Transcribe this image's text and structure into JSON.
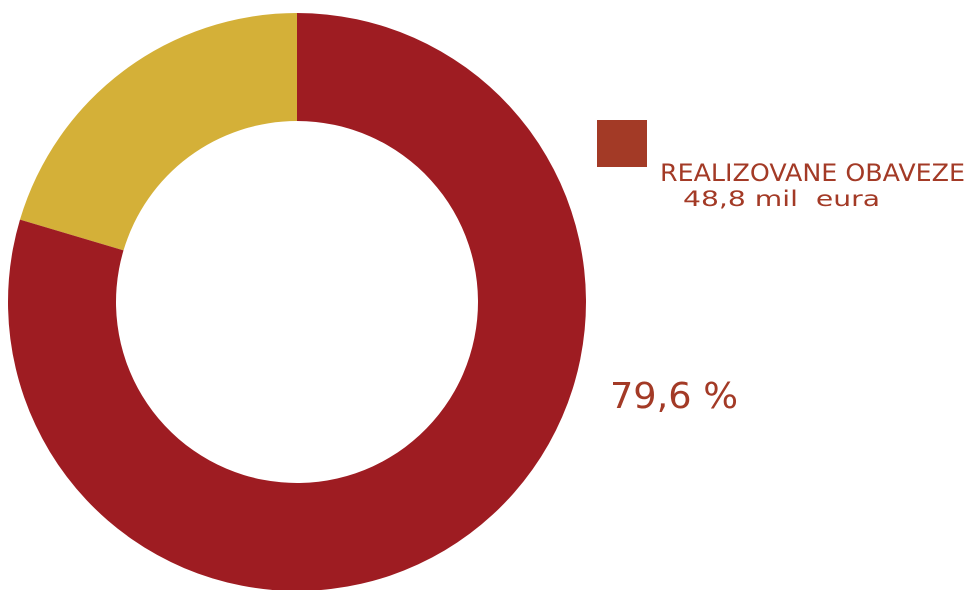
{
  "chart_data": {
    "type": "donut",
    "categories": [
      "REALIZOVANE OBAVEZE",
      null
    ],
    "values": [
      79.6,
      20.4
    ],
    "value_labels": [
      "79,6 %",
      null
    ],
    "colors": [
      "#9e1c22",
      "#d4b038"
    ],
    "legend_color": "#a33a26",
    "annotation": "48,8 mil  eura"
  }
}
